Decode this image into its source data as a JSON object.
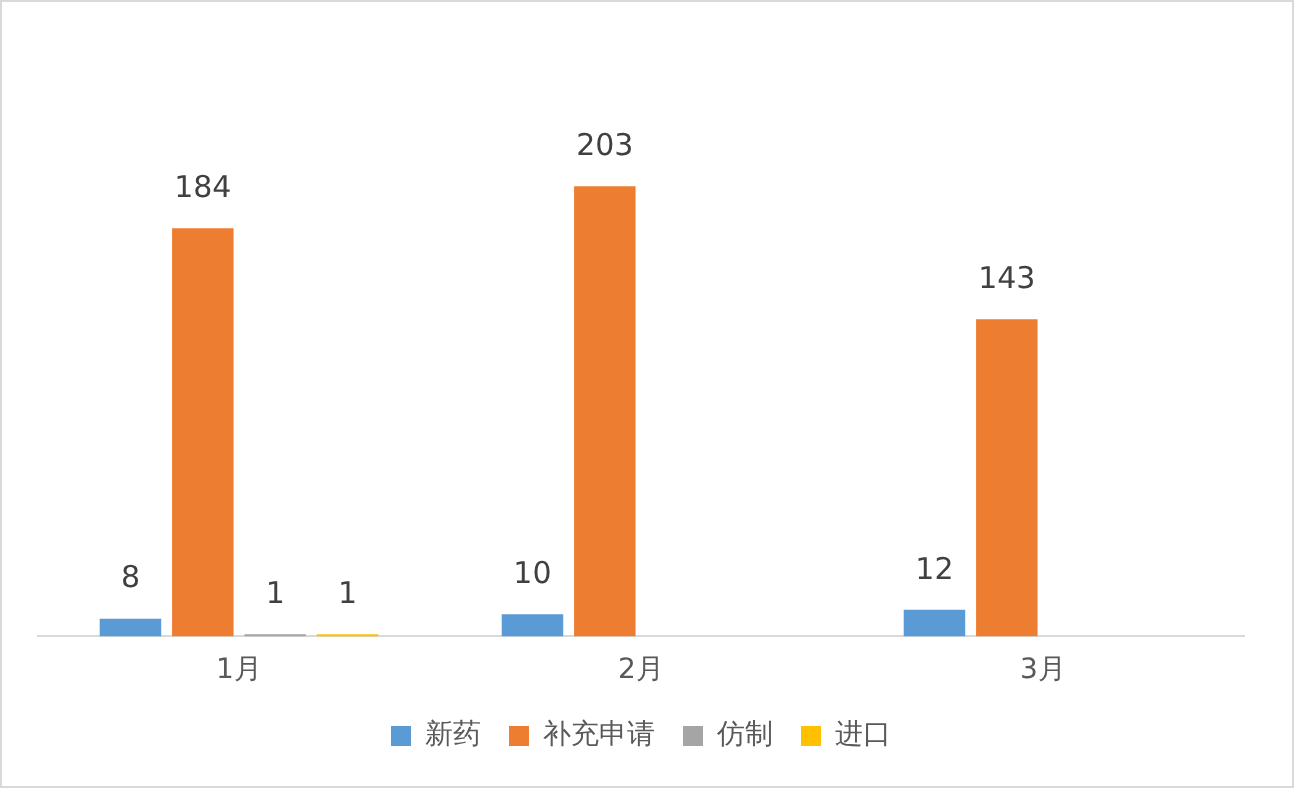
{
  "chart_data": {
    "type": "bar",
    "categories": [
      "1月",
      "2月",
      "3月"
    ],
    "series": [
      {
        "name": "新药",
        "color": "#5b9bd5",
        "values": [
          8,
          10,
          12
        ]
      },
      {
        "name": "补充申请",
        "color": "#ed7d31",
        "values": [
          184,
          203,
          143
        ]
      },
      {
        "name": "仿制",
        "color": "#a5a5a5",
        "values": [
          1,
          null,
          null
        ]
      },
      {
        "name": "进口",
        "color": "#ffc000",
        "values": [
          1,
          null,
          null
        ]
      }
    ],
    "data_labels": true,
    "grid": false,
    "legend": "bottom",
    "tick_labels": "x"
  }
}
